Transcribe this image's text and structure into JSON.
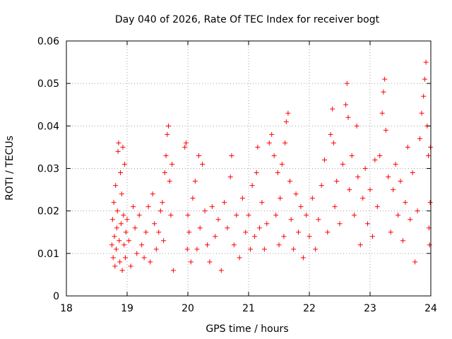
{
  "chart_data": {
    "type": "scatter",
    "title": "Day 040 of 2026, Rate Of TEC Index for receiver bogt",
    "xlabel": "GPS time / hours",
    "ylabel": "ROTI / TECUs",
    "xlim": [
      18,
      24
    ],
    "ylim": [
      0,
      0.06
    ],
    "xticks": [
      "18",
      "19",
      "20",
      "21",
      "22",
      "23",
      "24"
    ],
    "yticks": [
      "0",
      "0.01",
      "0.02",
      "0.03",
      "0.04",
      "0.05",
      "0.06"
    ],
    "grid": true,
    "marker": "+",
    "color": "#ff0000",
    "series": [
      {
        "name": "ROTI",
        "points": [
          [
            18.75,
            0.012
          ],
          [
            18.76,
            0.018
          ],
          [
            18.77,
            0.009
          ],
          [
            18.78,
            0.022
          ],
          [
            18.79,
            0.014
          ],
          [
            18.8,
            0.007
          ],
          [
            18.81,
            0.026
          ],
          [
            18.82,
            0.011
          ],
          [
            18.83,
            0.016
          ],
          [
            18.84,
            0.02
          ],
          [
            18.85,
            0.034
          ],
          [
            18.86,
            0.036
          ],
          [
            18.87,
            0.013
          ],
          [
            18.88,
            0.008
          ],
          [
            18.89,
            0.029
          ],
          [
            18.9,
            0.017
          ],
          [
            18.91,
            0.024
          ],
          [
            18.92,
            0.006
          ],
          [
            18.93,
            0.035
          ],
          [
            18.94,
            0.019
          ],
          [
            18.95,
            0.012
          ],
          [
            18.96,
            0.031
          ],
          [
            18.97,
            0.009
          ],
          [
            18.98,
            0.015
          ],
          [
            19.0,
            0.018
          ],
          [
            19.03,
            0.013
          ],
          [
            19.06,
            0.007
          ],
          [
            19.1,
            0.021
          ],
          [
            19.13,
            0.016
          ],
          [
            19.16,
            0.01
          ],
          [
            19.2,
            0.019
          ],
          [
            19.24,
            0.012
          ],
          [
            19.28,
            0.009
          ],
          [
            19.31,
            0.015
          ],
          [
            19.35,
            0.021
          ],
          [
            19.38,
            0.008
          ],
          [
            19.42,
            0.024
          ],
          [
            19.45,
            0.017
          ],
          [
            19.48,
            0.011
          ],
          [
            19.52,
            0.015
          ],
          [
            19.55,
            0.02
          ],
          [
            19.58,
            0.022
          ],
          [
            19.6,
            0.013
          ],
          [
            19.62,
            0.029
          ],
          [
            19.64,
            0.033
          ],
          [
            19.66,
            0.038
          ],
          [
            19.68,
            0.04
          ],
          [
            19.7,
            0.027
          ],
          [
            19.72,
            0.019
          ],
          [
            19.74,
            0.031
          ],
          [
            19.76,
            0.006
          ],
          [
            19.95,
            0.035
          ],
          [
            19.97,
            0.036
          ],
          [
            19.99,
            0.011
          ],
          [
            20.0,
            0.019
          ],
          [
            20.02,
            0.015
          ],
          [
            20.05,
            0.008
          ],
          [
            20.08,
            0.023
          ],
          [
            20.12,
            0.027
          ],
          [
            20.15,
            0.011
          ],
          [
            20.18,
            0.033
          ],
          [
            20.2,
            0.016
          ],
          [
            20.24,
            0.031
          ],
          [
            20.28,
            0.02
          ],
          [
            20.32,
            0.012
          ],
          [
            20.36,
            0.008
          ],
          [
            20.4,
            0.021
          ],
          [
            20.45,
            0.014
          ],
          [
            20.5,
            0.018
          ],
          [
            20.55,
            0.006
          ],
          [
            20.6,
            0.022
          ],
          [
            20.65,
            0.016
          ],
          [
            20.7,
            0.028
          ],
          [
            20.72,
            0.033
          ],
          [
            20.76,
            0.012
          ],
          [
            20.8,
            0.019
          ],
          [
            20.85,
            0.009
          ],
          [
            20.9,
            0.023
          ],
          [
            20.95,
            0.015
          ],
          [
            21.0,
            0.019
          ],
          [
            21.03,
            0.011
          ],
          [
            21.06,
            0.026
          ],
          [
            21.1,
            0.014
          ],
          [
            21.13,
            0.029
          ],
          [
            21.15,
            0.035
          ],
          [
            21.18,
            0.016
          ],
          [
            21.22,
            0.022
          ],
          [
            21.26,
            0.011
          ],
          [
            21.3,
            0.017
          ],
          [
            21.34,
            0.036
          ],
          [
            21.38,
            0.038
          ],
          [
            21.42,
            0.033
          ],
          [
            21.45,
            0.019
          ],
          [
            21.48,
            0.029
          ],
          [
            21.5,
            0.012
          ],
          [
            21.52,
            0.023
          ],
          [
            21.55,
            0.031
          ],
          [
            21.58,
            0.014
          ],
          [
            21.6,
            0.036
          ],
          [
            21.62,
            0.041
          ],
          [
            21.65,
            0.043
          ],
          [
            21.68,
            0.027
          ],
          [
            21.7,
            0.018
          ],
          [
            21.74,
            0.011
          ],
          [
            21.78,
            0.024
          ],
          [
            21.82,
            0.015
          ],
          [
            21.86,
            0.021
          ],
          [
            21.9,
            0.009
          ],
          [
            21.95,
            0.019
          ],
          [
            22.0,
            0.014
          ],
          [
            22.05,
            0.023
          ],
          [
            22.1,
            0.011
          ],
          [
            22.15,
            0.018
          ],
          [
            22.2,
            0.026
          ],
          [
            22.25,
            0.032
          ],
          [
            22.3,
            0.015
          ],
          [
            22.35,
            0.038
          ],
          [
            22.38,
            0.044
          ],
          [
            22.4,
            0.036
          ],
          [
            22.42,
            0.021
          ],
          [
            22.45,
            0.027
          ],
          [
            22.5,
            0.017
          ],
          [
            22.55,
            0.031
          ],
          [
            22.6,
            0.045
          ],
          [
            22.62,
            0.05
          ],
          [
            22.64,
            0.042
          ],
          [
            22.66,
            0.025
          ],
          [
            22.7,
            0.033
          ],
          [
            22.74,
            0.019
          ],
          [
            22.78,
            0.04
          ],
          [
            22.8,
            0.028
          ],
          [
            22.84,
            0.012
          ],
          [
            22.88,
            0.023
          ],
          [
            22.92,
            0.03
          ],
          [
            22.96,
            0.017
          ],
          [
            23.0,
            0.025
          ],
          [
            23.04,
            0.014
          ],
          [
            23.08,
            0.032
          ],
          [
            23.12,
            0.021
          ],
          [
            23.16,
            0.033
          ],
          [
            23.2,
            0.043
          ],
          [
            23.22,
            0.048
          ],
          [
            23.24,
            0.051
          ],
          [
            23.26,
            0.039
          ],
          [
            23.3,
            0.028
          ],
          [
            23.34,
            0.015
          ],
          [
            23.38,
            0.025
          ],
          [
            23.42,
            0.031
          ],
          [
            23.46,
            0.019
          ],
          [
            23.5,
            0.027
          ],
          [
            23.54,
            0.013
          ],
          [
            23.58,
            0.022
          ],
          [
            23.62,
            0.035
          ],
          [
            23.66,
            0.018
          ],
          [
            23.7,
            0.029
          ],
          [
            23.74,
            0.008
          ],
          [
            23.78,
            0.02
          ],
          [
            23.82,
            0.037
          ],
          [
            23.85,
            0.043
          ],
          [
            23.88,
            0.047
          ],
          [
            23.9,
            0.051
          ],
          [
            23.92,
            0.055
          ],
          [
            23.94,
            0.04
          ],
          [
            23.96,
            0.033
          ],
          [
            23.97,
            0.016
          ],
          [
            23.98,
            0.012
          ],
          [
            23.99,
            0.022
          ],
          [
            23.995,
            0.035
          ]
        ]
      }
    ]
  }
}
